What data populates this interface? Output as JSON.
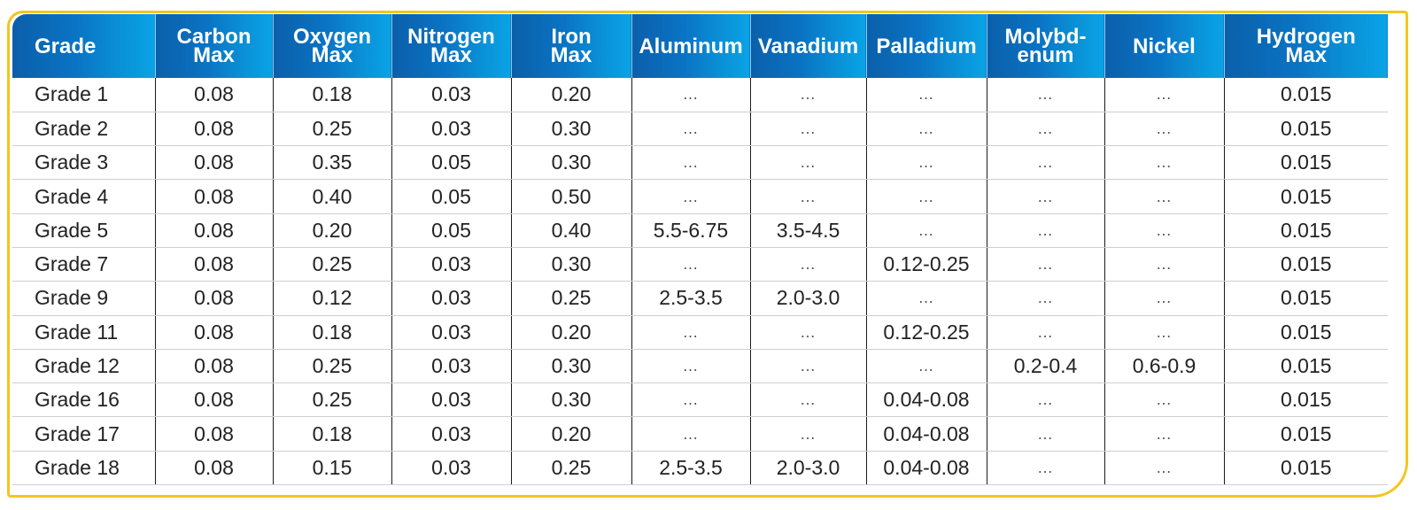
{
  "table": {
    "headers": [
      [
        "Grade"
      ],
      [
        "Carbon",
        "Max"
      ],
      [
        "Oxygen",
        "Max"
      ],
      [
        "Nitrogen",
        "Max"
      ],
      [
        "Iron",
        "Max"
      ],
      [
        "Aluminum"
      ],
      [
        "Vanadium"
      ],
      [
        "Palladium"
      ],
      [
        "Molybd-",
        "enum"
      ],
      [
        "Nickel"
      ],
      [
        "Hydrogen",
        "Max"
      ]
    ],
    "rows": [
      [
        "Grade 1",
        "0.08",
        "0.18",
        "0.03",
        "0.20",
        "…",
        "…",
        "…",
        "…",
        "…",
        "0.015"
      ],
      [
        "Grade 2",
        "0.08",
        "0.25",
        "0.03",
        "0.30",
        "…",
        "…",
        "…",
        "…",
        "…",
        "0.015"
      ],
      [
        "Grade 3",
        "0.08",
        "0.35",
        "0.05",
        "0.30",
        "…",
        "…",
        "…",
        "…",
        "…",
        "0.015"
      ],
      [
        "Grade 4",
        "0.08",
        "0.40",
        "0.05",
        "0.50",
        "…",
        "…",
        "…",
        "…",
        "…",
        "0.015"
      ],
      [
        "Grade 5",
        "0.08",
        "0.20",
        "0.05",
        "0.40",
        "5.5-6.75",
        "3.5-4.5",
        "…",
        "…",
        "…",
        "0.015"
      ],
      [
        "Grade 7",
        "0.08",
        "0.25",
        "0.03",
        "0.30",
        "…",
        "…",
        "0.12-0.25",
        "…",
        "…",
        "0.015"
      ],
      [
        "Grade 9",
        "0.08",
        "0.12",
        "0.03",
        "0.25",
        "2.5-3.5",
        "2.0-3.0",
        "…",
        "…",
        "…",
        "0.015"
      ],
      [
        "Grade 11",
        "0.08",
        "0.18",
        "0.03",
        "0.20",
        "…",
        "…",
        "0.12-0.25",
        "…",
        "…",
        "0.015"
      ],
      [
        "Grade 12",
        "0.08",
        "0.25",
        "0.03",
        "0.30",
        "…",
        "…",
        "…",
        "0.2-0.4",
        "0.6-0.9",
        "0.015"
      ],
      [
        "Grade 16",
        "0.08",
        "0.25",
        "0.03",
        "0.30",
        "…",
        "…",
        "0.04-0.08",
        "…",
        "…",
        "0.015"
      ],
      [
        "Grade 17",
        "0.08",
        "0.18",
        "0.03",
        "0.20",
        "…",
        "…",
        "0.04-0.08",
        "…",
        "…",
        "0.015"
      ],
      [
        "Grade 18",
        "0.08",
        "0.15",
        "0.03",
        "0.25",
        "2.5-3.5",
        "2.0-3.0",
        "0.04-0.08",
        "…",
        "…",
        "0.015"
      ]
    ]
  },
  "colors": {
    "header_start": "#0b5faa",
    "header_end": "#0aa3e6",
    "frame_border": "#f2c61f",
    "header_text": "#ffffff",
    "cell_text": "#222222"
  }
}
